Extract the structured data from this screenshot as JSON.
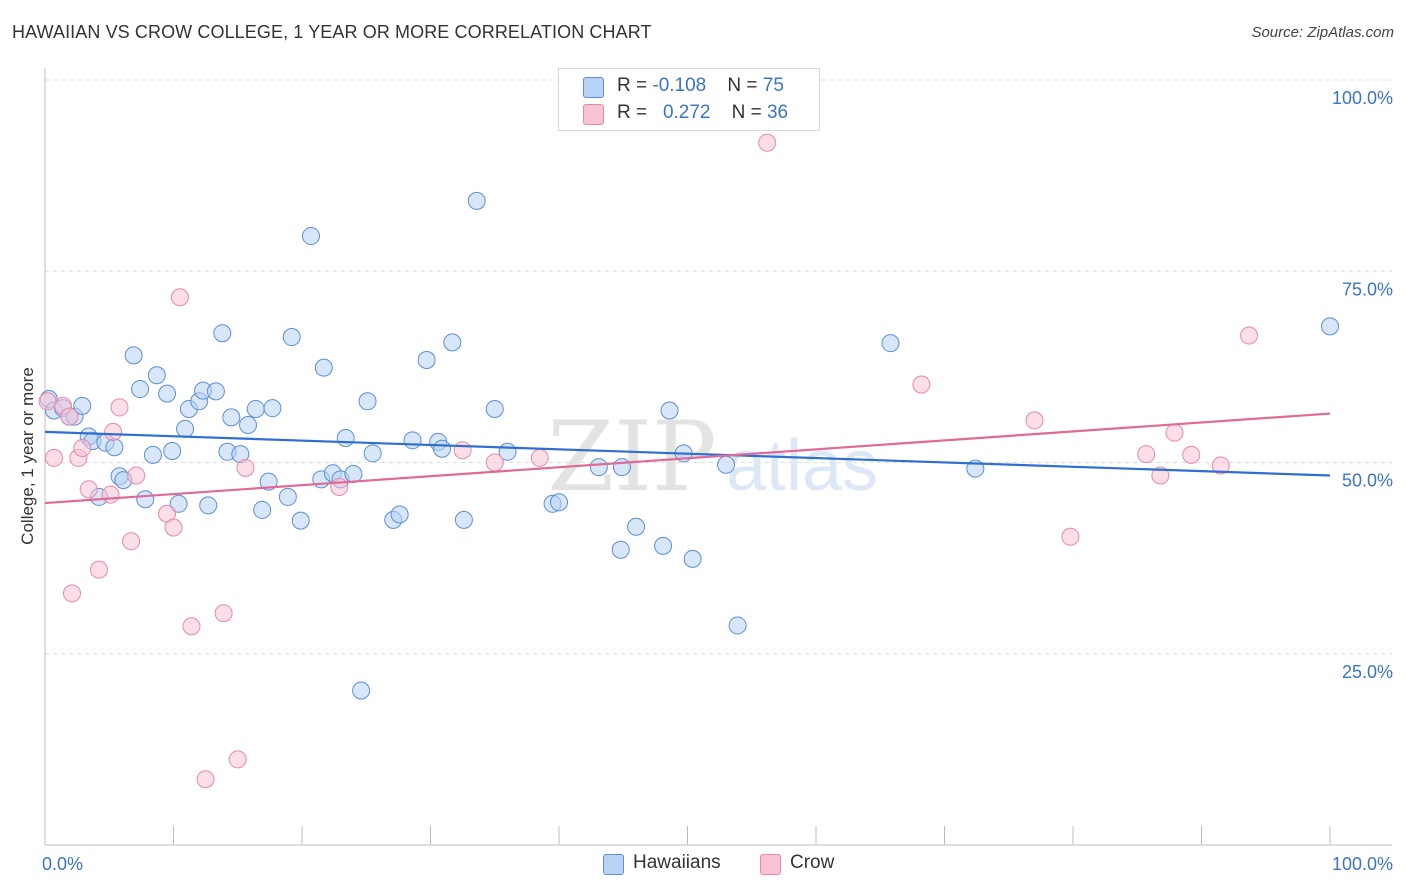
{
  "title": "HAWAIIAN VS CROW COLLEGE, 1 YEAR OR MORE CORRELATION CHART",
  "source": "Source: ZipAtlas.com",
  "watermark": {
    "zip": "ZIP",
    "atlas": "atlas"
  },
  "legend": {
    "rows": [
      {
        "r_label": "R = ",
        "r_value": "-0.108",
        "n_label": "N = ",
        "n_value": "75"
      },
      {
        "r_label": "R = ",
        "r_value": "0.272",
        "n_label": "N = ",
        "n_value": "36"
      }
    ]
  },
  "bottom_legend": [
    "Hawaiians",
    "Crow"
  ],
  "colors": {
    "hawaiians_fill": "#b8d2f4",
    "hawaiians_stroke": "#5b8fd6",
    "hawaiians_line": "#2f6fd0",
    "crow_fill": "#f8c3d5",
    "crow_stroke": "#e58aa8",
    "crow_line": "#e06a96",
    "tick_label": "#3a74c8",
    "grid": "#dcdcdc"
  },
  "chart_data": {
    "type": "scatter",
    "ylabel": "College, 1 year or more",
    "xlim": [
      0,
      100
    ],
    "ylim": [
      0,
      100
    ],
    "x_tick_labels": [
      "0.0%",
      "100.0%"
    ],
    "y_ticks": [
      25,
      50,
      75,
      100
    ],
    "y_tick_labels": [
      "25.0%",
      "50.0%",
      "75.0%",
      "100.0%"
    ],
    "grid": true,
    "series": [
      {
        "name": "Hawaiians",
        "trend": {
          "x": [
            0,
            100
          ],
          "y": [
            54.0,
            48.3
          ]
        },
        "points": [
          [
            0.3,
            58.3
          ],
          [
            0.7,
            56.8
          ],
          [
            1.4,
            57.1
          ],
          [
            1.9,
            56.0
          ],
          [
            2.3,
            56.0
          ],
          [
            2.9,
            57.4
          ],
          [
            3.4,
            53.4
          ],
          [
            3.7,
            52.8
          ],
          [
            4.2,
            45.5
          ],
          [
            4.7,
            52.6
          ],
          [
            5.4,
            52.0
          ],
          [
            5.8,
            48.2
          ],
          [
            6.1,
            47.7
          ],
          [
            6.9,
            64.0
          ],
          [
            7.4,
            59.6
          ],
          [
            7.8,
            45.2
          ],
          [
            8.4,
            51.0
          ],
          [
            8.7,
            61.4
          ],
          [
            9.5,
            59.0
          ],
          [
            9.9,
            51.5
          ],
          [
            10.4,
            44.6
          ],
          [
            10.9,
            54.4
          ],
          [
            11.2,
            57.0
          ],
          [
            12.0,
            58.0
          ],
          [
            12.3,
            59.4
          ],
          [
            12.7,
            44.4
          ],
          [
            13.3,
            59.3
          ],
          [
            13.8,
            66.9
          ],
          [
            14.2,
            51.4
          ],
          [
            14.5,
            55.9
          ],
          [
            15.2,
            51.1
          ],
          [
            15.8,
            54.9
          ],
          [
            16.4,
            57.0
          ],
          [
            16.9,
            43.8
          ],
          [
            17.4,
            47.5
          ],
          [
            17.7,
            57.1
          ],
          [
            18.9,
            45.5
          ],
          [
            19.2,
            66.4
          ],
          [
            19.9,
            42.4
          ],
          [
            20.7,
            79.6
          ],
          [
            21.5,
            47.8
          ],
          [
            21.7,
            62.4
          ],
          [
            22.4,
            48.6
          ],
          [
            23.0,
            47.8
          ],
          [
            23.4,
            53.2
          ],
          [
            24.0,
            48.5
          ],
          [
            25.1,
            58.0
          ],
          [
            25.5,
            51.2
          ],
          [
            24.6,
            20.2
          ],
          [
            27.1,
            42.5
          ],
          [
            27.6,
            43.2
          ],
          [
            28.6,
            52.9
          ],
          [
            29.7,
            63.4
          ],
          [
            30.6,
            52.7
          ],
          [
            30.9,
            51.8
          ],
          [
            31.7,
            65.7
          ],
          [
            32.6,
            42.5
          ],
          [
            33.6,
            84.2
          ],
          [
            35.0,
            57.0
          ],
          [
            36.0,
            51.4
          ],
          [
            39.5,
            44.6
          ],
          [
            40.0,
            44.8
          ],
          [
            43.1,
            49.4
          ],
          [
            44.8,
            38.6
          ],
          [
            44.9,
            49.4
          ],
          [
            46.0,
            41.6
          ],
          [
            48.1,
            39.1
          ],
          [
            48.6,
            56.8
          ],
          [
            49.7,
            51.2
          ],
          [
            50.4,
            37.4
          ],
          [
            53.0,
            49.7
          ],
          [
            53.9,
            28.7
          ],
          [
            65.8,
            65.6
          ],
          [
            72.4,
            49.2
          ],
          [
            100.0,
            67.8
          ]
        ]
      },
      {
        "name": "Crow",
        "trend": {
          "x": [
            0,
            100
          ],
          "y": [
            44.7,
            56.4
          ]
        },
        "points": [
          [
            0.2,
            58.0
          ],
          [
            0.7,
            50.6
          ],
          [
            1.4,
            57.4
          ],
          [
            1.9,
            56.0
          ],
          [
            2.1,
            32.9
          ],
          [
            2.6,
            50.6
          ],
          [
            2.9,
            51.9
          ],
          [
            3.4,
            46.5
          ],
          [
            4.2,
            36.0
          ],
          [
            5.1,
            45.8
          ],
          [
            5.3,
            54.0
          ],
          [
            5.8,
            57.2
          ],
          [
            6.7,
            39.7
          ],
          [
            7.1,
            48.3
          ],
          [
            9.5,
            43.3
          ],
          [
            10.0,
            41.5
          ],
          [
            10.5,
            71.6
          ],
          [
            11.4,
            28.6
          ],
          [
            12.5,
            8.6
          ],
          [
            13.9,
            30.3
          ],
          [
            15.0,
            11.2
          ],
          [
            15.6,
            49.3
          ],
          [
            22.9,
            46.8
          ],
          [
            32.5,
            51.6
          ],
          [
            35.0,
            50.0
          ],
          [
            38.5,
            50.6
          ],
          [
            56.2,
            91.8
          ],
          [
            68.2,
            60.2
          ],
          [
            77.0,
            55.5
          ],
          [
            79.8,
            40.3
          ],
          [
            85.7,
            51.1
          ],
          [
            86.8,
            48.3
          ],
          [
            87.9,
            53.9
          ],
          [
            89.2,
            51.0
          ],
          [
            91.5,
            49.6
          ],
          [
            93.7,
            66.6
          ]
        ]
      }
    ]
  }
}
